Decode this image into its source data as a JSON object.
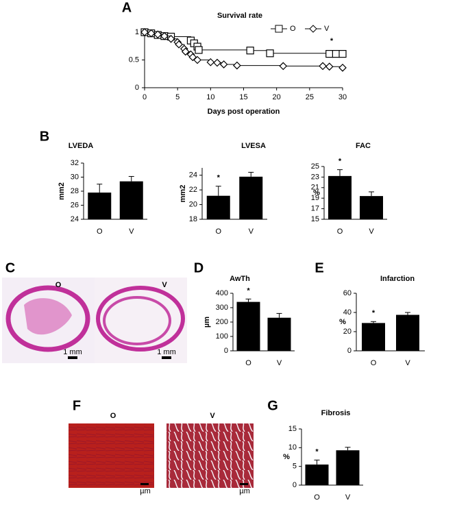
{
  "chart_data": [
    {
      "type": "line",
      "panel_label": "A",
      "title": "Survival rate",
      "xlabel": "Days post operation",
      "annotation": "*",
      "xlim": [
        0,
        30
      ],
      "xticks": [
        0,
        5,
        10,
        15,
        20,
        25,
        30
      ],
      "ylim": [
        0,
        1
      ],
      "yticks": [
        0,
        0.5,
        1
      ],
      "legend": "top-right",
      "series": [
        {
          "name": "O",
          "color": "#000000",
          "marker": "square",
          "x": [
            0,
            1,
            2,
            3,
            4,
            7,
            7.5,
            8,
            8.2,
            16,
            19,
            28,
            29,
            30
          ],
          "values": [
            1,
            0.98,
            0.95,
            0.93,
            0.92,
            0.85,
            0.8,
            0.74,
            0.68,
            0.67,
            0.62,
            0.61,
            0.61,
            0.61
          ]
        },
        {
          "name": "V",
          "color": "#000000",
          "marker": "diamond",
          "x": [
            0,
            1,
            2,
            3,
            4,
            5,
            5.2,
            6,
            6.2,
            7,
            7.3,
            8,
            10,
            11,
            12,
            14,
            21,
            27,
            28,
            30
          ],
          "values": [
            1,
            0.98,
            0.96,
            0.93,
            0.88,
            0.82,
            0.78,
            0.7,
            0.65,
            0.6,
            0.55,
            0.5,
            0.46,
            0.45,
            0.42,
            0.4,
            0.39,
            0.39,
            0.38,
            0.36
          ]
        }
      ]
    },
    {
      "type": "bar",
      "panel_label": "B",
      "title": "LVEDA",
      "ylabel": "mm2",
      "categories": [
        "O",
        "V"
      ],
      "values": [
        27.8,
        29.4
      ],
      "errors": [
        1.2,
        0.7
      ],
      "color": "#000000",
      "ylim": [
        24,
        32
      ],
      "yticks": [
        24,
        26,
        28,
        30,
        32
      ]
    },
    {
      "type": "bar",
      "title": "LVESA",
      "ylabel": "mm2",
      "annotation": "*",
      "categories": [
        "O",
        "V"
      ],
      "values": [
        21.2,
        23.8
      ],
      "errors": [
        1.3,
        0.6
      ],
      "color": "#000000",
      "ylim": [
        18,
        25
      ],
      "yticks": [
        18,
        20,
        22,
        24
      ]
    },
    {
      "type": "bar",
      "title": "FAC",
      "ylabel": "%",
      "annotation": "*",
      "categories": [
        "O",
        "V"
      ],
      "values": [
        23.2,
        19.4
      ],
      "errors": [
        1.2,
        0.8
      ],
      "color": "#000000",
      "ylim": [
        15,
        25
      ],
      "yticks": [
        15,
        17,
        19,
        21,
        23,
        25
      ]
    },
    {
      "type": "bar",
      "panel_label": "D",
      "title": "AwTh",
      "ylabel": "µm",
      "annotation": "*",
      "categories": [
        "O",
        "V"
      ],
      "values": [
        340,
        230
      ],
      "errors": [
        20,
        30
      ],
      "color": "#000000",
      "ylim": [
        0,
        400
      ],
      "yticks": [
        0,
        100,
        200,
        300,
        400
      ]
    },
    {
      "type": "bar",
      "panel_label": "E",
      "title": "Infarction",
      "ylabel": "%",
      "annotation": "*",
      "categories": [
        "O",
        "V"
      ],
      "values": [
        29,
        37.5
      ],
      "errors": [
        1.5,
        2.5
      ],
      "color": "#000000",
      "ylim": [
        0,
        60
      ],
      "yticks": [
        0,
        20,
        40,
        60
      ]
    },
    {
      "type": "bar",
      "panel_label": "G",
      "title": "Fibrosis",
      "ylabel": "%",
      "annotation": "*",
      "categories": [
        "O",
        "V"
      ],
      "values": [
        5.5,
        9.3
      ],
      "errors": [
        1.2,
        0.8
      ],
      "color": "#000000",
      "ylim": [
        0,
        15
      ],
      "yticks": [
        0,
        5,
        10,
        15
      ]
    }
  ],
  "histology": [
    {
      "panel_label": "C",
      "labels": [
        "O",
        "V"
      ],
      "scale_bar": "1 mm"
    },
    {
      "panel_label": "F",
      "labels": [
        "O",
        "V"
      ],
      "scale_bar": "µm"
    }
  ]
}
